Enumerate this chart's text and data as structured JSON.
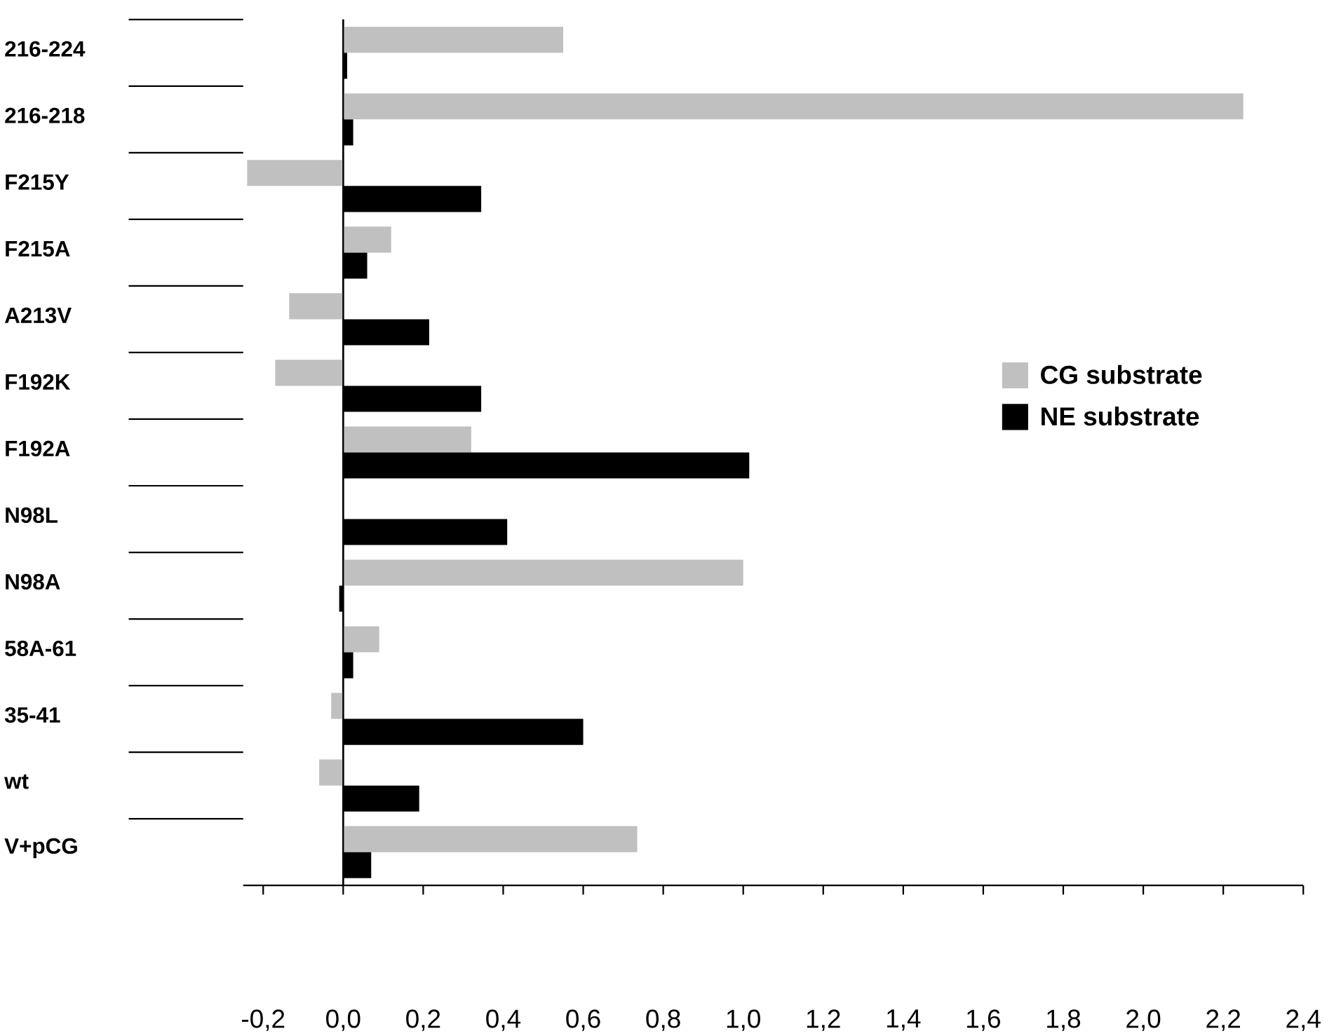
{
  "chart_data": {
    "type": "bar",
    "orientation": "horizontal",
    "categories": [
      "216-224",
      "216-218",
      "F215Y",
      "F215A",
      "A213V",
      "F192K",
      "F192A",
      "N98L",
      "N98A",
      "58A-61",
      "35-41",
      "wt",
      "V+pCG"
    ],
    "series": [
      {
        "name": "CG substrate",
        "color": "#c0c0c0",
        "values": [
          0.55,
          2.25,
          -0.24,
          0.12,
          -0.135,
          -0.17,
          0.32,
          null,
          1.0,
          0.09,
          -0.03,
          -0.06,
          0.735
        ]
      },
      {
        "name": "NE substrate",
        "color": "#000000",
        "values": [
          0.01,
          0.025,
          0.345,
          0.06,
          0.215,
          0.345,
          1.015,
          0.41,
          -0.01,
          0.025,
          0.6,
          0.19,
          0.07
        ]
      }
    ],
    "xlim": [
      -0.25,
      2.4
    ],
    "xticks": [
      {
        "value": -0.2,
        "label": "-0,2"
      },
      {
        "value": 0.0,
        "label": "0,0"
      },
      {
        "value": 0.2,
        "label": "0,2"
      },
      {
        "value": 0.4,
        "label": "0,4"
      },
      {
        "value": 0.6,
        "label": "0,6"
      },
      {
        "value": 0.8,
        "label": "0,8"
      },
      {
        "value": 1.0,
        "label": "1,0"
      },
      {
        "value": 1.2,
        "label": "1,2"
      },
      {
        "value": 1.4,
        "label": "1,4"
      },
      {
        "value": 1.6,
        "label": "1,6"
      },
      {
        "value": 1.8,
        "label": "1,8"
      },
      {
        "value": 2.0,
        "label": "2,0"
      },
      {
        "value": 2.2,
        "label": "2,2"
      },
      {
        "value": 2.4,
        "label": "2,4"
      }
    ],
    "legend": "right"
  }
}
